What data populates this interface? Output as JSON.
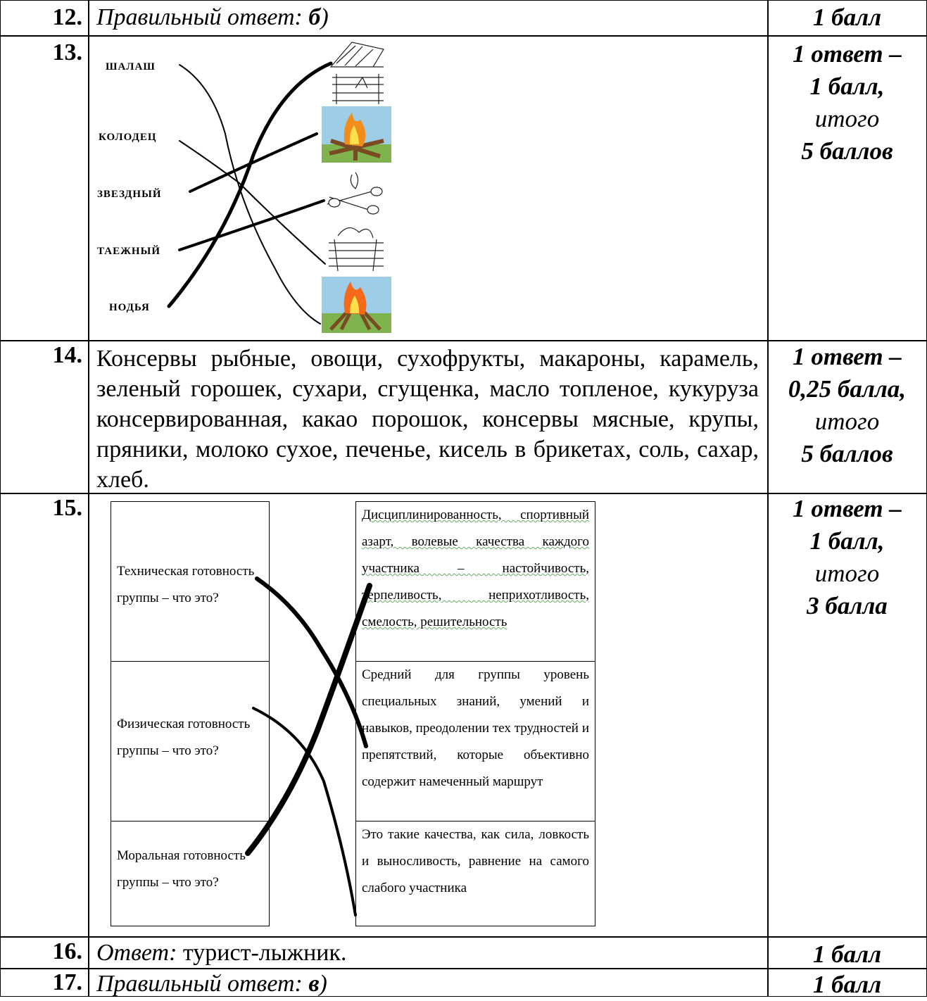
{
  "rows": [
    {
      "number": "12.",
      "answer": {
        "label": "Правильный ответ:",
        "value": "б",
        "tail": ")"
      },
      "score": [
        "1 балл"
      ]
    },
    {
      "number": "13.",
      "matching": {
        "words": [
          "ШАЛАШ",
          "КОЛОДЕЦ",
          "ЗВЕЗДНЫЙ",
          "ТАЕЖНЫЙ",
          "НОДЬЯ"
        ]
      },
      "score": [
        "1 ответ –",
        "1 балл,",
        "итого",
        "5 баллов"
      ]
    },
    {
      "number": "14.",
      "text": "Консервы рыбные, овощи, сухофрукты, макароны, карамель, зеленый горошек, сухари, сгущенка, масло топленое, кукуруза консервированная, какао порошок, консервы мясные, крупы, пряники, молоко сухое, печенье, кисель в брикетах, соль, сахар, хлеб.",
      "score": [
        "1 ответ –",
        "0,25 балла,",
        "итого",
        "5 баллов"
      ]
    },
    {
      "number": "15.",
      "matching": {
        "left": [
          "Техническая готовность группы – что это?",
          "Физическая готовность группы – что это?",
          "Моральная готовность группы – что это?"
        ],
        "right": [
          "Дисциплинированность, спортивный азарт, волевые качества каждого участника – настойчивость, терпеливость, неприхотливость, смелость, решительность",
          "Средний для группы уровень специальных знаний, умений и навыков, преодолении тех трудностей и препятствий, которые объективно содержит намеченный маршрут",
          "Это такие качества, как сила, ловкость и выносливость, равнение на самого слабого участника"
        ]
      },
      "score": [
        "1 ответ –",
        "1 балл,",
        "итого",
        "3 балла"
      ]
    },
    {
      "number": "16.",
      "answer": {
        "label": "Ответ:",
        "text": "турист-лыжник."
      },
      "score": [
        "1 балл"
      ]
    },
    {
      "number": "17.",
      "answer": {
        "label": "Правильный ответ:",
        "value": "в",
        "tail": ")"
      },
      "score": [
        "1 балл"
      ]
    }
  ]
}
